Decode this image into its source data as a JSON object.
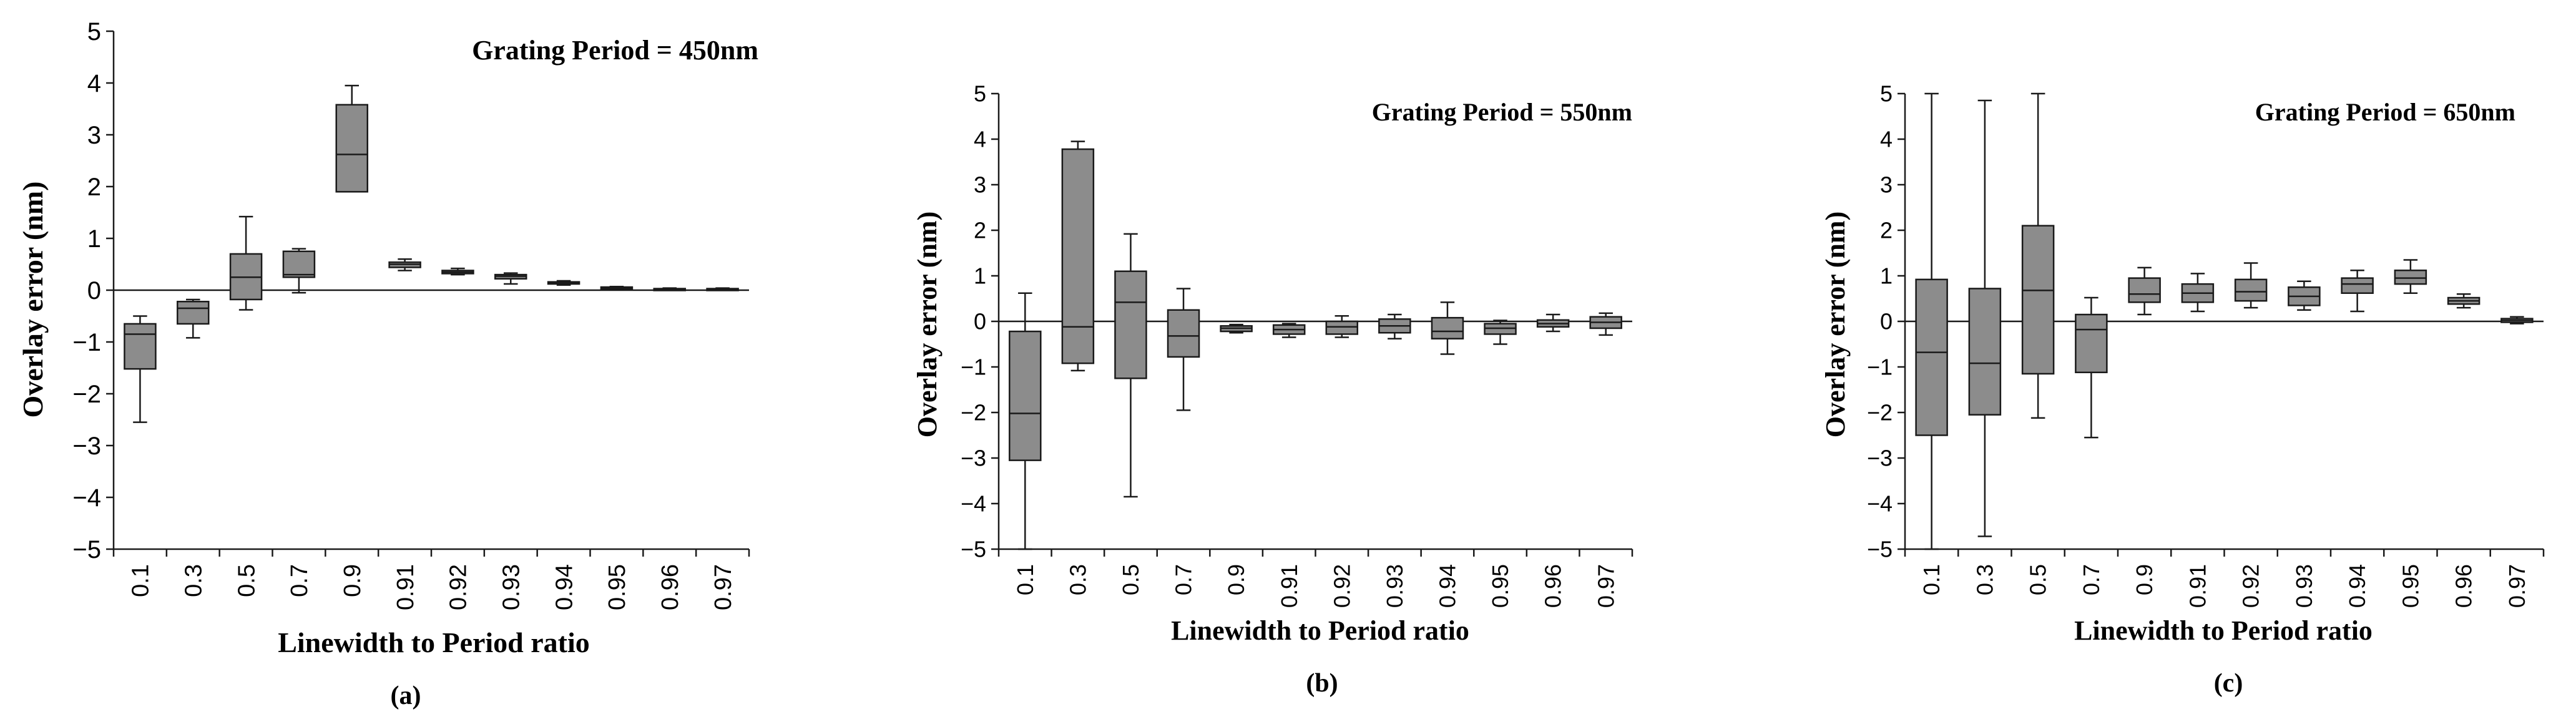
{
  "chart_data": [
    {
      "type": "boxplot",
      "title": "Grating Period = 450nm",
      "xlabel": "Linewidth to Period ratio",
      "ylabel": "Overlay error (nm)",
      "caption": "(a)",
      "ylim": [
        -5,
        5
      ],
      "yticks": [
        -5,
        -4,
        -3,
        -2,
        -1,
        0,
        1,
        2,
        3,
        4,
        5
      ],
      "ytick_labels": [
        "−5",
        "−4",
        "−3",
        "−2",
        "−1",
        "0",
        "1",
        "2",
        "3",
        "4",
        "5"
      ],
      "categories": [
        "0.1",
        "0.3",
        "0.5",
        "0.7",
        "0.9",
        "0.91",
        "0.92",
        "0.93",
        "0.94",
        "0.95",
        "0.96",
        "0.97"
      ],
      "boxes": [
        {
          "min": -2.55,
          "q1": -1.52,
          "median": -0.85,
          "q3": -0.65,
          "max": -0.5
        },
        {
          "min": -0.92,
          "q1": -0.65,
          "median": -0.35,
          "q3": -0.22,
          "max": -0.18
        },
        {
          "min": -0.38,
          "q1": -0.18,
          "median": 0.25,
          "q3": 0.7,
          "max": 1.42
        },
        {
          "min": -0.05,
          "q1": 0.25,
          "median": 0.3,
          "q3": 0.75,
          "max": 0.8
        },
        {
          "min": 1.9,
          "q1": 1.9,
          "median": 2.62,
          "q3": 3.58,
          "max": 3.95
        },
        {
          "min": 0.38,
          "q1": 0.44,
          "median": 0.5,
          "q3": 0.54,
          "max": 0.6
        },
        {
          "min": 0.3,
          "q1": 0.32,
          "median": 0.35,
          "q3": 0.38,
          "max": 0.42
        },
        {
          "min": 0.12,
          "q1": 0.22,
          "median": 0.27,
          "q3": 0.3,
          "max": 0.33
        },
        {
          "min": 0.1,
          "q1": 0.12,
          "median": 0.14,
          "q3": 0.16,
          "max": 0.18
        },
        {
          "min": 0.02,
          "q1": 0.03,
          "median": 0.05,
          "q3": 0.06,
          "max": 0.07
        },
        {
          "min": 0.0,
          "q1": 0.01,
          "median": 0.02,
          "q3": 0.03,
          "max": 0.04
        },
        {
          "min": 0.0,
          "q1": 0.01,
          "median": 0.02,
          "q3": 0.03,
          "max": 0.04
        }
      ]
    },
    {
      "type": "boxplot",
      "title": "Grating Period = 550nm",
      "xlabel": "Linewidth to Period ratio",
      "ylabel": "Overlay error (nm)",
      "caption": "(b)",
      "ylim": [
        -5,
        5
      ],
      "yticks": [
        -5,
        -4,
        -3,
        -2,
        -1,
        0,
        1,
        2,
        3,
        4,
        5
      ],
      "ytick_labels": [
        "−5",
        "−4",
        "−3",
        "−2",
        "−1",
        "0",
        "1",
        "2",
        "3",
        "4",
        "5"
      ],
      "categories": [
        "0.1",
        "0.3",
        "0.5",
        "0.7",
        "0.9",
        "0.91",
        "0.92",
        "0.93",
        "0.94",
        "0.95",
        "0.96",
        "0.97"
      ],
      "boxes": [
        {
          "min": -5.0,
          "q1": -3.05,
          "median": -2.02,
          "q3": -0.22,
          "max": 0.62
        },
        {
          "min": -1.08,
          "q1": -0.92,
          "median": -0.12,
          "q3": 3.78,
          "max": 3.95
        },
        {
          "min": -3.85,
          "q1": -1.25,
          "median": 0.42,
          "q3": 1.1,
          "max": 1.92
        },
        {
          "min": -1.95,
          "q1": -0.78,
          "median": -0.32,
          "q3": 0.25,
          "max": 0.72
        },
        {
          "min": -0.25,
          "q1": -0.22,
          "median": -0.15,
          "q3": -0.1,
          "max": -0.07
        },
        {
          "min": -0.35,
          "q1": -0.28,
          "median": -0.18,
          "q3": -0.08,
          "max": -0.05
        },
        {
          "min": -0.35,
          "q1": -0.28,
          "median": -0.12,
          "q3": 0.0,
          "max": 0.12
        },
        {
          "min": -0.38,
          "q1": -0.25,
          "median": -0.1,
          "q3": 0.05,
          "max": 0.15
        },
        {
          "min": -0.72,
          "q1": -0.38,
          "median": -0.22,
          "q3": 0.08,
          "max": 0.42
        },
        {
          "min": -0.5,
          "q1": -0.28,
          "median": -0.15,
          "q3": -0.05,
          "max": 0.02
        },
        {
          "min": -0.22,
          "q1": -0.12,
          "median": -0.05,
          "q3": 0.03,
          "max": 0.15
        },
        {
          "min": -0.3,
          "q1": -0.15,
          "median": -0.02,
          "q3": 0.1,
          "max": 0.18
        }
      ]
    },
    {
      "type": "boxplot",
      "title": "Grating Period = 650nm",
      "xlabel": "Linewidth to Period ratio",
      "ylabel": "Overlay error (nm)",
      "caption": "(c)",
      "ylim": [
        -5,
        5
      ],
      "yticks": [
        -5,
        -4,
        -3,
        -2,
        -1,
        0,
        1,
        2,
        3,
        4,
        5
      ],
      "ytick_labels": [
        "−5",
        "−4",
        "−3",
        "−2",
        "−1",
        "0",
        "1",
        "2",
        "3",
        "4",
        "5"
      ],
      "categories": [
        "0.1",
        "0.3",
        "0.5",
        "0.7",
        "0.9",
        "0.91",
        "0.92",
        "0.93",
        "0.94",
        "0.95",
        "0.96",
        "0.97"
      ],
      "boxes": [
        {
          "min": -5.0,
          "q1": -2.5,
          "median": -0.68,
          "q3": 0.92,
          "max": 5.0
        },
        {
          "min": -4.72,
          "q1": -2.05,
          "median": -0.92,
          "q3": 0.72,
          "max": 4.85
        },
        {
          "min": -2.12,
          "q1": -1.15,
          "median": 0.68,
          "q3": 2.1,
          "max": 5.0
        },
        {
          "min": -2.55,
          "q1": -1.12,
          "median": -0.18,
          "q3": 0.15,
          "max": 0.52
        },
        {
          "min": 0.15,
          "q1": 0.42,
          "median": 0.6,
          "q3": 0.95,
          "max": 1.18
        },
        {
          "min": 0.22,
          "q1": 0.42,
          "median": 0.62,
          "q3": 0.82,
          "max": 1.05
        },
        {
          "min": 0.3,
          "q1": 0.45,
          "median": 0.65,
          "q3": 0.92,
          "max": 1.28
        },
        {
          "min": 0.25,
          "q1": 0.35,
          "median": 0.55,
          "q3": 0.75,
          "max": 0.88
        },
        {
          "min": 0.22,
          "q1": 0.62,
          "median": 0.82,
          "q3": 0.95,
          "max": 1.12
        },
        {
          "min": 0.62,
          "q1": 0.82,
          "median": 0.95,
          "q3": 1.12,
          "max": 1.35
        },
        {
          "min": 0.3,
          "q1": 0.38,
          "median": 0.45,
          "q3": 0.52,
          "max": 0.6
        },
        {
          "min": -0.05,
          "q1": -0.02,
          "median": 0.02,
          "q3": 0.06,
          "max": 0.1
        }
      ]
    }
  ]
}
